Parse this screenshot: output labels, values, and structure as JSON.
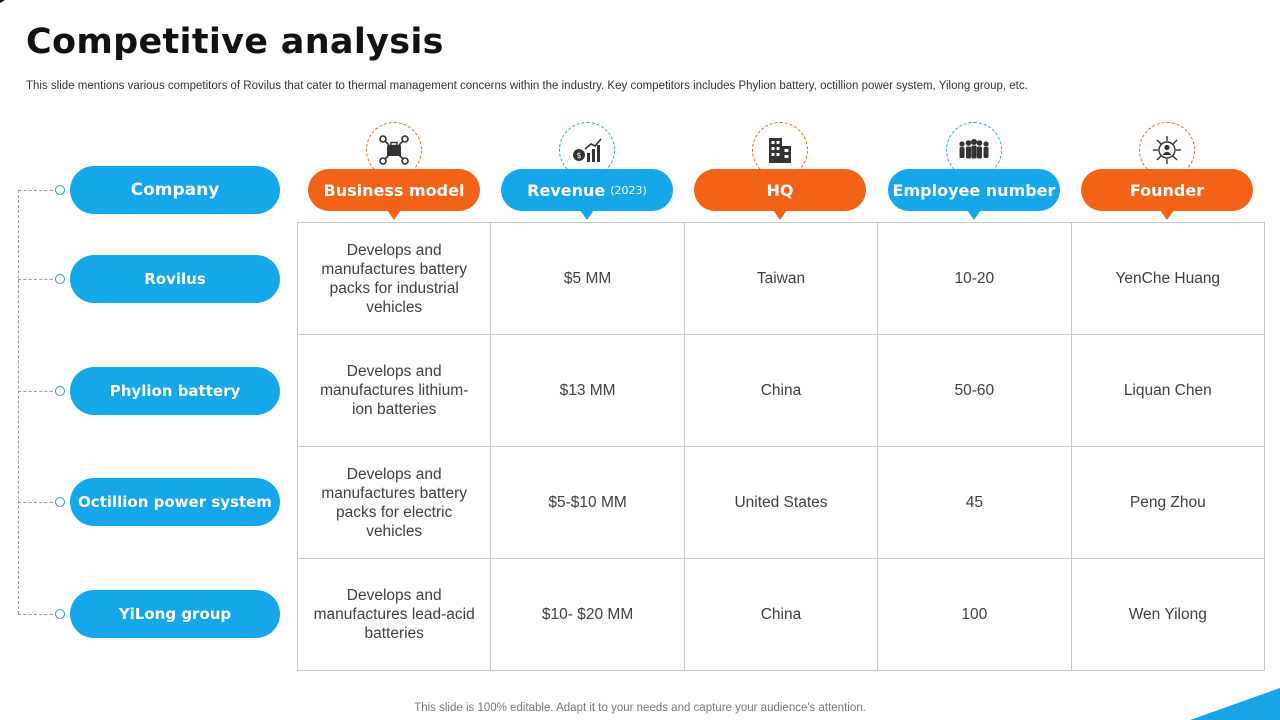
{
  "slide": {
    "title": "Competitive analysis",
    "subtitle": "This slide mentions various competitors of Rovilus that cater to thermal management concerns within the industry. Key competitors includes Phylion battery, octillion power system, Yilong group, etc.",
    "footer": "This slide is 100% editable. Adapt it to your needs and capture your audience's attention."
  },
  "row_header": "Company",
  "columns": [
    {
      "label": "Business model",
      "suffix": "",
      "color": "orange",
      "icon": "network-briefcase-icon"
    },
    {
      "label": "Revenue",
      "suffix": "(2023)",
      "color": "blue",
      "icon": "money-chart-icon"
    },
    {
      "label": "HQ",
      "suffix": "",
      "color": "orange",
      "icon": "building-icon"
    },
    {
      "label": "Employee number",
      "suffix": "",
      "color": "blue",
      "icon": "people-group-icon"
    },
    {
      "label": "Founder",
      "suffix": "",
      "color": "orange",
      "icon": "founder-network-icon"
    }
  ],
  "rows": [
    {
      "company": "Rovilus",
      "cells": [
        "Develops and manufactures  battery packs for industrial vehicles",
        "$5 MM",
        "Taiwan",
        "10-20",
        "YenChe  Huang"
      ]
    },
    {
      "company": "Phylion battery",
      "cells": [
        "Develops and manufactures lithium-ion  batteries",
        "$13 MM",
        "China",
        "50-60",
        "Liquan Chen"
      ]
    },
    {
      "company": "Octillion power system",
      "cells": [
        "Develops and manufactures  battery packs for electric vehicles",
        "$5-$10 MM",
        "United States",
        "45",
        "Peng Zhou"
      ]
    },
    {
      "company": "YiLong group",
      "cells": [
        "Develops and manufactures lead-acid batteries",
        "$10- $20 MM",
        "China",
        "100",
        "Wen Yilong"
      ]
    }
  ],
  "colors": {
    "orange": "#f26318",
    "blue": "#16a6ea"
  }
}
